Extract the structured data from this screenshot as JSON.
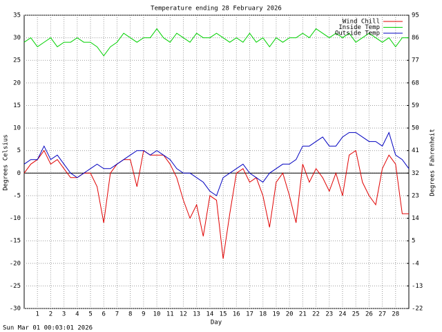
{
  "chart_data": {
    "type": "line",
    "title": "Temperature ending 28 February 2026",
    "xlabel": "Day",
    "ylabel": "Degrees Celsius",
    "y2label": "Degrees Fahrenheit",
    "footer": "Sun Mar 01 00:03:01 2026",
    "x": [
      0,
      0.5,
      1,
      1.5,
      2,
      2.5,
      3,
      3.5,
      4,
      4.5,
      5,
      5.5,
      6,
      6.5,
      7,
      7.5,
      8,
      8.5,
      9,
      9.5,
      10,
      10.5,
      11,
      11.5,
      12,
      12.5,
      13,
      13.5,
      14,
      14.5,
      15,
      15.5,
      16,
      16.5,
      17,
      17.5,
      18,
      18.5,
      19,
      19.5,
      20,
      20.5,
      21,
      21.5,
      22,
      22.5,
      23,
      23.5,
      24,
      24.5,
      25,
      25.5,
      26,
      26.5,
      27,
      27.5,
      28,
      28.5,
      29
    ],
    "xlim": [
      0,
      29
    ],
    "xticks": [
      1,
      2,
      3,
      4,
      5,
      6,
      7,
      8,
      9,
      10,
      11,
      12,
      13,
      14,
      15,
      16,
      17,
      18,
      19,
      20,
      21,
      22,
      23,
      24,
      25,
      26,
      27,
      28
    ],
    "ylim": [
      -30,
      35
    ],
    "yticks": [
      -30,
      -25,
      -20,
      -15,
      -10,
      -5,
      0,
      5,
      10,
      15,
      20,
      25,
      30,
      35
    ],
    "y2lim": [
      -22,
      95
    ],
    "y2ticks": [
      -22,
      -13,
      -4,
      5,
      14,
      23,
      32,
      41,
      50,
      59,
      68,
      77,
      86,
      95
    ],
    "grid": true,
    "legend": "upper right",
    "series": [
      {
        "name": "Wind Chill",
        "color": "#e00000",
        "values": [
          0,
          2,
          3,
          5,
          2,
          3,
          1,
          -1,
          -1,
          0,
          0,
          -3,
          -11,
          0,
          2,
          3,
          3,
          -3,
          5,
          4,
          4,
          4,
          2,
          -1,
          -6,
          -10,
          -7,
          -14,
          -5,
          -6,
          -19,
          -9,
          0,
          1,
          -2,
          -1,
          -5,
          -12,
          -2,
          0,
          -5,
          -11,
          2,
          -2,
          1,
          -1,
          -4,
          0,
          -5,
          4,
          5,
          -2,
          -5,
          -7,
          1,
          4,
          2,
          -9,
          -9
        ]
      },
      {
        "name": "Inside Temp",
        "color": "#00d000",
        "values": [
          29,
          30,
          28,
          29,
          30,
          28,
          29,
          29,
          30,
          29,
          29,
          28,
          26,
          28,
          29,
          31,
          30,
          29,
          30,
          30,
          32,
          30,
          29,
          31,
          30,
          29,
          31,
          30,
          30,
          31,
          30,
          29,
          30,
          29,
          31,
          29,
          30,
          28,
          30,
          29,
          30,
          30,
          31,
          30,
          32,
          31,
          30,
          31,
          30,
          31,
          29,
          30,
          31,
          30,
          29,
          30,
          28,
          30,
          30
        ]
      },
      {
        "name": "Outside Temp",
        "color": "#0000c0",
        "values": [
          2,
          3,
          3,
          6,
          3,
          4,
          2,
          0,
          -1,
          0,
          1,
          2,
          1,
          1,
          2,
          3,
          4,
          5,
          5,
          4,
          5,
          4,
          3,
          1,
          0,
          0,
          -1,
          -2,
          -4,
          -5,
          -1,
          0,
          1,
          2,
          0,
          -1,
          -2,
          0,
          1,
          2,
          2,
          3,
          6,
          6,
          7,
          8,
          6,
          6,
          8,
          9,
          9,
          8,
          7,
          7,
          6,
          9,
          4,
          3,
          1
        ]
      }
    ]
  }
}
